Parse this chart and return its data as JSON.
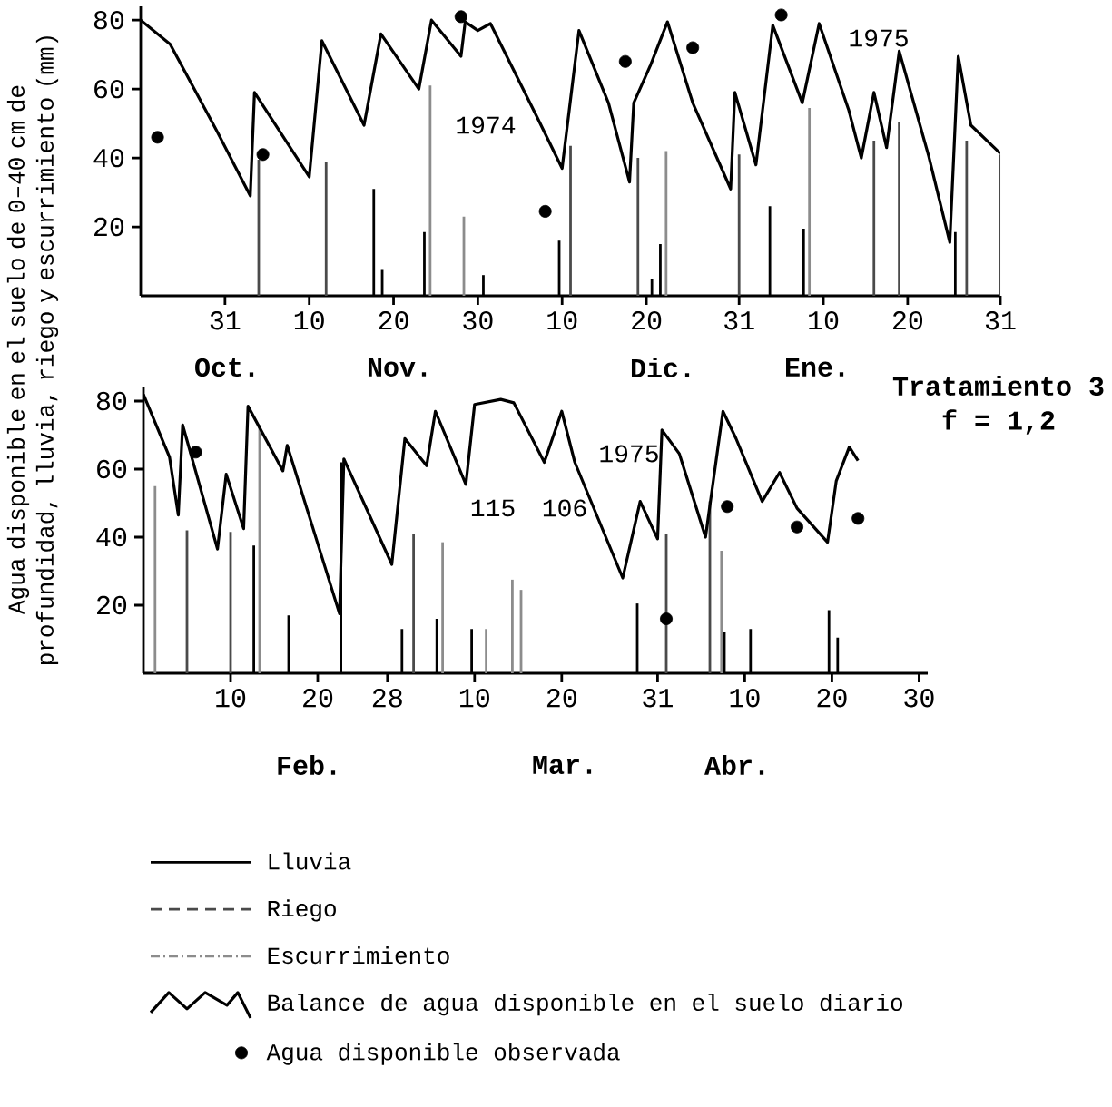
{
  "chart_data": [
    {
      "type": "line",
      "ylabel": "Agua disponible en el suelo de 0–40 cm de profundidad, lluvia, riego y escurrimiento (mm)",
      "xlim": [
        "1974-10-21",
        "1975-01-31"
      ],
      "ylim": [
        0,
        84
      ],
      "yticks": [
        20,
        40,
        60,
        80
      ],
      "xticks": [
        {
          "value": "1974-10-31",
          "label": "31"
        },
        {
          "value": "1974-11-10",
          "label": "10"
        },
        {
          "value": "1974-11-20",
          "label": "20"
        },
        {
          "value": "1974-11-30",
          "label": "30"
        },
        {
          "value": "1974-12-10",
          "label": "10"
        },
        {
          "value": "1974-12-20",
          "label": "20"
        },
        {
          "value": "1974-12-31",
          "label": "31"
        },
        {
          "value": "1975-01-10",
          "label": "10"
        },
        {
          "value": "1975-01-20",
          "label": "20"
        },
        {
          "value": "1975-01-31",
          "label": "31"
        }
      ],
      "annotations": [
        "Oct.",
        "Nov.",
        "Dic.",
        "Ene.",
        "1974",
        "1975"
      ],
      "series": [
        {
          "type": "bar",
          "color": "#000000",
          "line_style": "solid",
          "x": [
            "1974-11-18",
            "1974-11-19",
            "1974-11-24",
            "1974-12-01",
            "1974-12-10",
            "1974-12-21",
            "1974-12-22",
            "1975-01-04",
            "1975-01-08",
            "1975-01-26"
          ],
          "values": [
            31,
            7.5,
            18.5,
            6,
            16,
            5,
            15,
            26,
            19.5,
            18.5
          ]
        },
        {
          "type": "bar",
          "color": "#4a4a4a",
          "line_style": "dashed",
          "x": [
            "1974-11-04",
            "1974-11-12",
            "1974-12-11",
            "1974-12-19",
            "1974-12-31",
            "1975-01-16",
            "1975-01-19",
            "1975-01-27",
            "1975-01-31"
          ],
          "values": [
            39.5,
            39,
            43.5,
            40,
            41,
            45,
            50.5,
            45,
            41
          ]
        },
        {
          "type": "bar",
          "color": "#8c8c8c",
          "line_style": "dotted",
          "x": [
            "1974-11-24",
            "1974-11-28",
            "1974-12-22",
            "1975-01-08"
          ],
          "values": [
            61,
            23,
            42,
            54.5
          ]
        },
        {
          "color": "#000000",
          "line_style": "solid",
          "x": [
            "1974-10-21",
            "1974-10-24T12:00",
            "1974-10-30",
            "1974-11-03",
            "1974-11-03T12:00",
            "1974-11-10",
            "1974-11-11T12:00",
            "1974-11-16T12:00",
            "1974-11-18T12:00",
            "1974-11-23",
            "1974-11-24T12:00",
            "1974-11-28",
            "1974-11-28T12:00",
            "1974-11-30",
            "1974-12-01T12:00",
            "1974-12-07",
            "1974-12-10",
            "1974-12-12",
            "1974-12-15T12:00",
            "1974-12-18",
            "1974-12-18T12:00",
            "1974-12-20T12:00",
            "1974-12-22T12:00",
            "1974-12-25T12:00",
            "1974-12-30",
            "1974-12-30T12:00",
            "1975-01-02",
            "1975-01-04",
            "1975-01-07T12:00",
            "1975-01-09T12:00",
            "1975-01-13",
            "1975-01-14T12:00",
            "1975-01-16",
            "1975-01-17T12:00",
            "1975-01-19",
            "1975-01-22T12:00",
            "1975-01-25",
            "1975-01-26",
            "1975-01-27T12:00",
            "1975-01-31"
          ],
          "values": [
            80,
            73,
            48,
            29,
            59,
            34.5,
            74,
            49.5,
            76,
            60,
            80,
            69.5,
            79.5,
            77,
            79,
            52,
            37,
            77,
            56,
            33,
            56,
            67,
            79.5,
            56,
            31,
            59,
            38,
            78.5,
            56,
            79,
            54,
            40,
            59,
            43,
            71,
            40.5,
            15.5,
            69.5,
            49.5,
            41.3
          ]
        },
        {
          "type": "scatter",
          "color": "#000000",
          "marker": "circle",
          "x": [
            "1974-10-23",
            "1974-11-04T12:00",
            "1974-11-28",
            "1974-12-08",
            "1974-12-17T12:00",
            "1974-12-25T12:00",
            "1975-01-05"
          ],
          "values": [
            46,
            41,
            81,
            24.5,
            68,
            72,
            81.5
          ]
        }
      ]
    },
    {
      "type": "line",
      "legend": "bottom",
      "xlim": [
        "1975-01-31",
        "1975-05-01"
      ],
      "ylim": [
        0,
        84
      ],
      "yticks": [
        20,
        40,
        60,
        80
      ],
      "xticks": [
        {
          "value": "1975-02-10",
          "label": "10"
        },
        {
          "value": "1975-02-20",
          "label": "20"
        },
        {
          "value": "1975-02-28",
          "label": "28"
        },
        {
          "value": "1975-03-10",
          "label": "10"
        },
        {
          "value": "1975-03-20",
          "label": "20"
        },
        {
          "value": "1975-03-31",
          "label": "31"
        },
        {
          "value": "1975-04-10",
          "label": "10"
        },
        {
          "value": "1975-04-20",
          "label": "20"
        },
        {
          "value": "1975-04-30",
          "label": "30"
        }
      ],
      "annotations": [
        "Feb.",
        "Mar.",
        "Abr.",
        "1975",
        "115",
        "106",
        "Tratamiento 3",
        "f = 1,2"
      ],
      "series": [
        {
          "type": "bar",
          "name": "Lluvia",
          "color": "#000000",
          "line_style": "solid",
          "x": [
            "1975-02-13",
            "1975-02-17",
            "1975-02-23",
            "1975-03-02",
            "1975-03-06",
            "1975-03-10",
            "1975-03-29",
            "1975-04-08",
            "1975-04-11",
            "1975-04-20",
            "1975-04-21"
          ],
          "values": [
            37.5,
            17,
            62,
            13,
            16,
            13,
            20.5,
            12,
            13,
            18.5,
            10.5
          ]
        },
        {
          "type": "bar",
          "name": "Riego",
          "color": "#4a4a4a",
          "line_style": "dashed",
          "x": [
            "1975-02-05",
            "1975-02-10",
            "1975-03-03",
            "1975-04-01",
            "1975-04-06"
          ],
          "values": [
            42,
            41.5,
            41,
            41,
            50.5
          ]
        },
        {
          "type": "bar",
          "name": "Escurrimiento",
          "color": "#8c8c8c",
          "line_style": "dotted",
          "x": [
            "1975-02-01",
            "1975-02-13",
            "1975-03-06",
            "1975-03-11",
            "1975-03-14",
            "1975-03-15",
            "1975-04-07"
          ],
          "values": [
            55,
            73,
            38.5,
            13,
            27.5,
            24.5,
            36
          ]
        },
        {
          "name": "Balance de agua disponible en el suelo diario",
          "color": "#000000",
          "line_style": "solid",
          "x": [
            "1975-01-31",
            "1975-02-03",
            "1975-02-04",
            "1975-02-04T12:00",
            "1975-02-08T12:00",
            "1975-02-09T12:00",
            "1975-02-11T12:00",
            "1975-02-12",
            "1975-02-16",
            "1975-02-16T12:00",
            "1975-02-22T12:00",
            "1975-02-23",
            "1975-02-28T12:00",
            "1975-03-02",
            "1975-03-04T12:00",
            "1975-03-05T12:00",
            "1975-03-09",
            "1975-03-10",
            "1975-03-13",
            "1975-03-14T12:00",
            "1975-03-18",
            "1975-03-20",
            "1975-03-21T12:00",
            "1975-03-27",
            "1975-03-29",
            "1975-03-31",
            "1975-03-31T12:00",
            "1975-04-02T12:00",
            "1975-04-05T12:00",
            "1975-04-07T12:00",
            "1975-04-09",
            "1975-04-12",
            "1975-04-14",
            "1975-04-16",
            "1975-04-19T12:00",
            "1975-04-20T12:00",
            "1975-04-22",
            "1975-04-23"
          ],
          "values": [
            82,
            63.5,
            46.5,
            73,
            36.5,
            58.5,
            42.5,
            78.5,
            59.5,
            67,
            17.5,
            63,
            32,
            69,
            61,
            77,
            55.5,
            79,
            80.5,
            79.5,
            62,
            77,
            62,
            28,
            50.5,
            39.5,
            71.5,
            64.5,
            40,
            77,
            69,
            50.5,
            59,
            48.5,
            38.5,
            56.5,
            66.5,
            62.5
          ]
        },
        {
          "type": "scatter",
          "name": "Agua disponible observada",
          "color": "#000000",
          "marker": "circle",
          "x": [
            "1975-02-06",
            "1975-04-01",
            "1975-04-08",
            "1975-04-16",
            "1975-04-23"
          ],
          "values": [
            65,
            16,
            49,
            43,
            45.5
          ]
        }
      ]
    }
  ]
}
